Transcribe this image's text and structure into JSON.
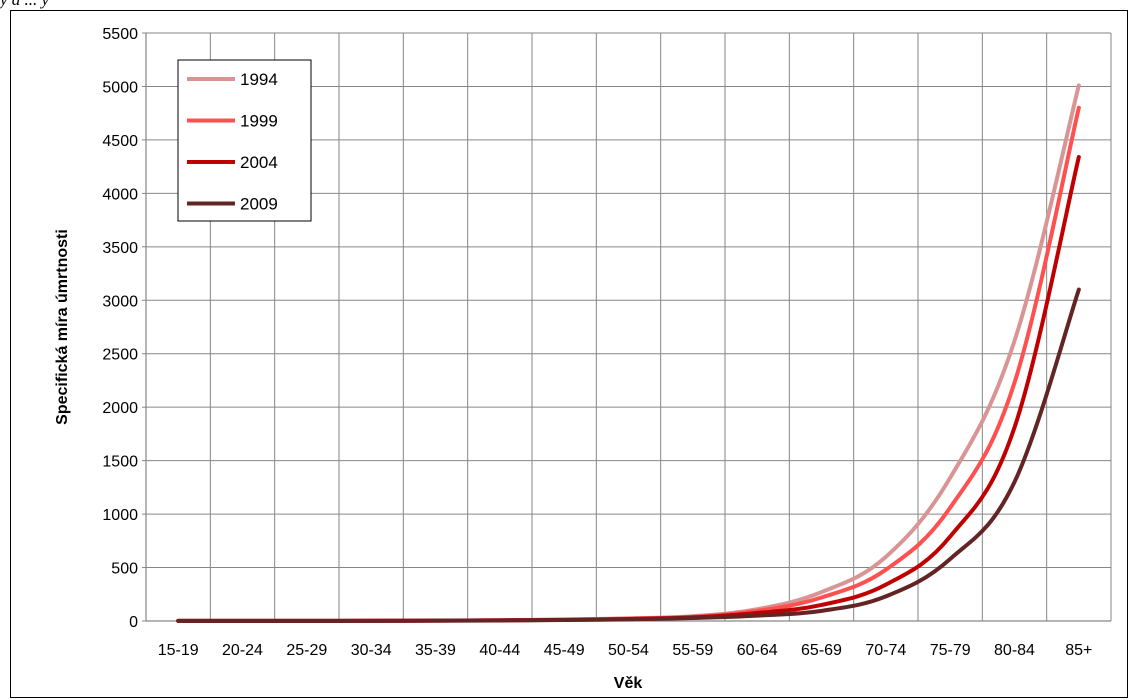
{
  "top_fragment": "y á ... y",
  "chart_data": {
    "type": "line",
    "title": "",
    "xlabel": "Věk",
    "ylabel": "Specifická míra úmrtnosti",
    "categories": [
      "15-19",
      "20-24",
      "25-29",
      "30-34",
      "35-39",
      "40-44",
      "45-49",
      "50-54",
      "55-59",
      "60-64",
      "65-69",
      "70-74",
      "75-79",
      "80-84",
      "85+"
    ],
    "ylim": [
      0,
      5500
    ],
    "yticks": [
      0,
      500,
      1000,
      1500,
      2000,
      2500,
      3000,
      3500,
      4000,
      4500,
      5000,
      5500
    ],
    "grid": true,
    "legend_position": "top-left",
    "series": [
      {
        "name": "1994",
        "color": "#d99594",
        "values": [
          1,
          1,
          1,
          2,
          4,
          8,
          14,
          25,
          45,
          110,
          270,
          600,
          1340,
          2620,
          5010
        ]
      },
      {
        "name": "1999",
        "color": "#ff5050",
        "values": [
          1,
          1,
          1,
          2,
          3,
          7,
          12,
          22,
          40,
          95,
          220,
          480,
          1060,
          2230,
          4800
        ]
      },
      {
        "name": "2004",
        "color": "#c00000",
        "values": [
          1,
          1,
          1,
          2,
          3,
          6,
          11,
          19,
          34,
          75,
          150,
          340,
          790,
          1810,
          4340
        ]
      },
      {
        "name": "2009",
        "color": "#632423",
        "values": [
          1,
          1,
          1,
          1,
          3,
          5,
          9,
          16,
          28,
          50,
          95,
          230,
          580,
          1300,
          3100
        ]
      }
    ]
  }
}
